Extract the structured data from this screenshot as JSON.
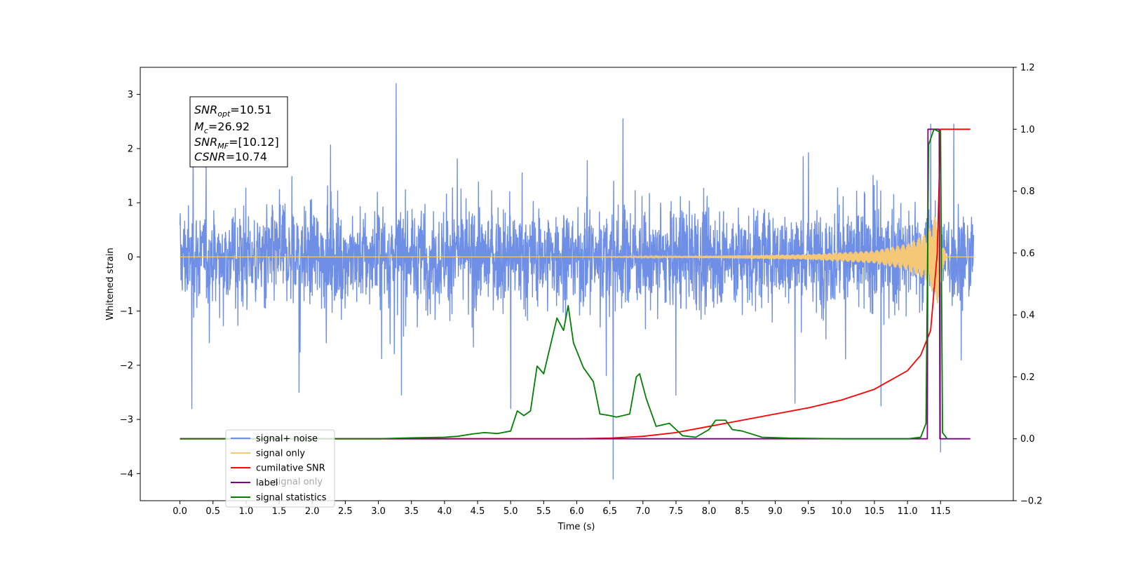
{
  "chart_data": {
    "type": "line",
    "xlabel": "Time (s)",
    "ylabel": "Whitened strain",
    "xlim": [
      -0.6,
      12.6
    ],
    "ylim": [
      -4.5,
      3.5
    ],
    "ylim_right": [
      -0.2,
      1.2
    ],
    "x_ticks": [
      "0.0",
      "0.5",
      "1.0",
      "1.5",
      "2.0",
      "2.5",
      "3.0",
      "3.5",
      "4.0",
      "4.5",
      "5.0",
      "5.5",
      "6.0",
      "6.5",
      "7.0",
      "7.5",
      "8.0",
      "8.5",
      "9.0",
      "9.5",
      "10.0",
      "10.5",
      "11.0",
      "11.5"
    ],
    "y_ticks": [
      "3",
      "2",
      "1",
      "0",
      "−1",
      "−2",
      "−3",
      "−4"
    ],
    "y_right_ticks": [
      "1.2",
      "1.0",
      "0.8",
      "0.6",
      "0.4",
      "0.2",
      "0.0",
      "−0.2"
    ],
    "annotation": {
      "lines": [
        {
          "main": "SNR",
          "sub": "opt",
          "rest": "=10.51"
        },
        {
          "main": "M",
          "sub": "c",
          "rest": "=26.92"
        },
        {
          "main": "SNR",
          "sub": "MF",
          "rest": "=[10.12]"
        },
        {
          "main": "CSNR",
          "sub": "",
          "rest": "=10.74"
        }
      ]
    },
    "legend": {
      "placement": "lower-left",
      "items": [
        {
          "label": "signal+ noise",
          "color": "#6f8fe6"
        },
        {
          "label": "signal only",
          "color": "#f5c878"
        },
        {
          "label": "cumilative SNR",
          "color": "#ff0000"
        },
        {
          "label": "label",
          "color": "#800080"
        },
        {
          "label": "signal statistics",
          "color": "#008000"
        }
      ],
      "hidden_overlap_text": "signal only"
    },
    "series": [
      {
        "name": "signal+ noise",
        "axis": "left",
        "color": "#6f8fe6",
        "x_range": [
          0.0,
          12.0
        ],
        "baseline_amplitude": 1.2,
        "spikes": [
          {
            "x": 0.18,
            "y": -2.8
          },
          {
            "x": 0.2,
            "y": 2.3
          },
          {
            "x": 1.8,
            "y": -2.5
          },
          {
            "x": 3.27,
            "y": 3.2
          },
          {
            "x": 3.35,
            "y": -2.55
          },
          {
            "x": 5.0,
            "y": -2.8
          },
          {
            "x": 6.55,
            "y": -4.1
          },
          {
            "x": 6.7,
            "y": 2.55
          },
          {
            "x": 7.5,
            "y": -2.55
          },
          {
            "x": 9.3,
            "y": -2.7
          },
          {
            "x": 10.6,
            "y": -2.75
          },
          {
            "x": 11.5,
            "y": -3.6
          },
          {
            "x": 11.35,
            "y": 2.45
          },
          {
            "x": 11.7,
            "y": 2.45
          }
        ]
      },
      {
        "name": "signal only",
        "axis": "left",
        "color": "#f5c878",
        "x_range": [
          0.0,
          12.0
        ],
        "amplitude_points": [
          [
            0,
            0.0
          ],
          [
            6,
            0.0
          ],
          [
            8,
            0.02
          ],
          [
            9.5,
            0.05
          ],
          [
            10.5,
            0.12
          ],
          [
            11.0,
            0.25
          ],
          [
            11.3,
            0.45
          ],
          [
            11.48,
            0.95
          ],
          [
            11.52,
            0.3
          ],
          [
            11.6,
            0.0
          ],
          [
            12.0,
            0.0
          ]
        ]
      },
      {
        "name": "cumilative SNR",
        "axis": "right",
        "color": "#ff0000",
        "points": [
          [
            0.0,
            0.0
          ],
          [
            6.0,
            0.0
          ],
          [
            6.5,
            0.002
          ],
          [
            7.0,
            0.008
          ],
          [
            7.5,
            0.02
          ],
          [
            8.0,
            0.04
          ],
          [
            8.5,
            0.06
          ],
          [
            9.0,
            0.08
          ],
          [
            9.5,
            0.1
          ],
          [
            10.0,
            0.125
          ],
          [
            10.5,
            0.16
          ],
          [
            11.0,
            0.22
          ],
          [
            11.2,
            0.27
          ],
          [
            11.35,
            0.35
          ],
          [
            11.45,
            0.6
          ],
          [
            11.5,
            1.0
          ],
          [
            11.95,
            1.0
          ]
        ]
      },
      {
        "name": "label",
        "axis": "right",
        "color": "#800080",
        "points": [
          [
            0.0,
            0.0
          ],
          [
            11.3,
            0.0
          ],
          [
            11.31,
            1.0
          ],
          [
            11.48,
            1.0
          ],
          [
            11.49,
            0.0
          ],
          [
            11.95,
            0.0
          ]
        ]
      },
      {
        "name": "signal statistics",
        "axis": "right",
        "color": "#008000",
        "points": [
          [
            0.0,
            0.0
          ],
          [
            3.0,
            0.0
          ],
          [
            3.5,
            0.003
          ],
          [
            4.0,
            0.005
          ],
          [
            4.2,
            0.008
          ],
          [
            4.4,
            0.015
          ],
          [
            4.6,
            0.02
          ],
          [
            4.8,
            0.017
          ],
          [
            5.0,
            0.025
          ],
          [
            5.1,
            0.09
          ],
          [
            5.2,
            0.075
          ],
          [
            5.3,
            0.09
          ],
          [
            5.4,
            0.235
          ],
          [
            5.5,
            0.21
          ],
          [
            5.6,
            0.3
          ],
          [
            5.7,
            0.39
          ],
          [
            5.8,
            0.35
          ],
          [
            5.87,
            0.43
          ],
          [
            5.95,
            0.31
          ],
          [
            6.1,
            0.23
          ],
          [
            6.25,
            0.185
          ],
          [
            6.35,
            0.08
          ],
          [
            6.5,
            0.075
          ],
          [
            6.6,
            0.07
          ],
          [
            6.8,
            0.08
          ],
          [
            6.9,
            0.2
          ],
          [
            6.95,
            0.21
          ],
          [
            7.05,
            0.13
          ],
          [
            7.2,
            0.04
          ],
          [
            7.4,
            0.05
          ],
          [
            7.6,
            0.01
          ],
          [
            7.8,
            0.005
          ],
          [
            8.0,
            0.03
          ],
          [
            8.1,
            0.06
          ],
          [
            8.25,
            0.06
          ],
          [
            8.35,
            0.03
          ],
          [
            8.5,
            0.025
          ],
          [
            8.8,
            0.005
          ],
          [
            9.2,
            0.002
          ],
          [
            10.0,
            0.0
          ],
          [
            11.0,
            0.0
          ],
          [
            11.2,
            0.005
          ],
          [
            11.28,
            0.05
          ],
          [
            11.32,
            0.95
          ],
          [
            11.4,
            1.0
          ],
          [
            11.5,
            0.99
          ],
          [
            11.53,
            0.02
          ],
          [
            11.6,
            0.0
          ]
        ]
      }
    ]
  }
}
